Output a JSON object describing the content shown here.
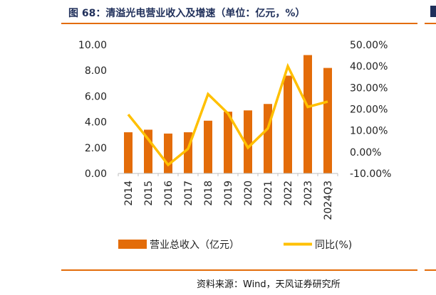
{
  "header": {
    "title": "图 68：清溢光电营业收入及增速（单位：亿元，%）"
  },
  "footer": {
    "source": "资料来源：Wind，天风证券研究所"
  },
  "colors": {
    "bar": "#e36c09",
    "line": "#ffc000",
    "rule": "#e36c09",
    "title": "#1f2f5a"
  },
  "chart_data": {
    "type": "bar",
    "categories": [
      "2014",
      "2015",
      "2016",
      "2017",
      "2018",
      "2019",
      "2020",
      "2021",
      "2022",
      "2023",
      "2024Q3"
    ],
    "series": [
      {
        "name": "营业总收入（亿元）",
        "type": "bar",
        "axis": "left",
        "values": [
          3.2,
          3.4,
          3.1,
          3.2,
          4.1,
          4.8,
          4.9,
          5.4,
          7.6,
          9.2,
          8.2
        ]
      },
      {
        "name": "同比(%)",
        "type": "line",
        "axis": "right",
        "values": [
          17.5,
          6.0,
          -6.0,
          1.5,
          27.0,
          18.0,
          2.0,
          11.0,
          40.0,
          21.0,
          23.5
        ]
      }
    ],
    "ylim": [
      0,
      10
    ],
    "y_ticks": [
      "0.00",
      "2.00",
      "4.00",
      "6.00",
      "8.00",
      "10.00"
    ],
    "y2lim": [
      -10,
      50
    ],
    "y2_ticks": [
      "-10.00%",
      "0.00%",
      "10.00%",
      "20.00%",
      "30.00%",
      "40.00%",
      "50.00%"
    ],
    "grid": false,
    "legend": "bottom"
  }
}
